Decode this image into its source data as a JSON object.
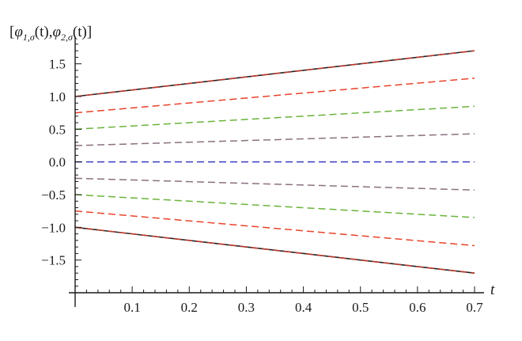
{
  "chart_data": {
    "type": "line",
    "title": "",
    "xlabel": "t",
    "ylabel": "[φ1,σ(t),φ2,σ(t)]",
    "ylabel_parts": {
      "open": "[",
      "phi": "φ",
      "sub1": "1,σ",
      "sub2": "2,σ",
      "arg": "(t)",
      "comma": ",",
      "close": "]"
    },
    "xlim": [
      0,
      0.7
    ],
    "ylim": [
      -2.0,
      1.75
    ],
    "x_ticks": [
      0.1,
      0.2,
      0.3,
      0.4,
      0.5,
      0.6,
      0.7
    ],
    "x_tick_labels": [
      "0.1",
      "0.2",
      "0.3",
      "0.4",
      "0.5",
      "0.6",
      "0.7"
    ],
    "y_ticks": [
      -1.5,
      -1.0,
      -0.5,
      0.0,
      0.5,
      1.0,
      1.5
    ],
    "y_tick_labels": [
      "−1.5",
      "−1.0",
      "−0.5",
      "0.0",
      "0.5",
      "1.0",
      "1.5"
    ],
    "grid": false,
    "legend": "none",
    "series": [
      {
        "color": "#222222",
        "style": "solid",
        "x": [
          0,
          0.7
        ],
        "y": [
          1.0,
          1.7
        ]
      },
      {
        "color": "#c0392b",
        "style": "dashed",
        "x": [
          0,
          0.7
        ],
        "y": [
          1.0,
          1.7
        ]
      },
      {
        "color": "#e8432b",
        "style": "dashed",
        "x": [
          0,
          0.7
        ],
        "y": [
          0.75,
          1.28
        ]
      },
      {
        "color": "#6ab33a",
        "style": "dashed",
        "x": [
          0,
          0.7
        ],
        "y": [
          0.5,
          0.85
        ]
      },
      {
        "color": "#8a7080",
        "style": "dashed",
        "x": [
          0,
          0.7
        ],
        "y": [
          0.25,
          0.43
        ]
      },
      {
        "color": "#3a3ec0",
        "style": "dashed",
        "x": [
          0,
          0.7
        ],
        "y": [
          0.0,
          0.0
        ]
      },
      {
        "color": "#8a7080",
        "style": "dashed",
        "x": [
          0,
          0.7
        ],
        "y": [
          -0.25,
          -0.43
        ]
      },
      {
        "color": "#6ab33a",
        "style": "dashed",
        "x": [
          0,
          0.7
        ],
        "y": [
          -0.5,
          -0.85
        ]
      },
      {
        "color": "#e8432b",
        "style": "dashed",
        "x": [
          0,
          0.7
        ],
        "y": [
          -0.75,
          -1.28
        ]
      },
      {
        "color": "#222222",
        "style": "solid",
        "x": [
          0,
          0.7
        ],
        "y": [
          -1.0,
          -1.7
        ]
      },
      {
        "color": "#c0392b",
        "style": "dashed",
        "x": [
          0,
          0.7
        ],
        "y": [
          -1.0,
          -1.7
        ]
      }
    ]
  }
}
